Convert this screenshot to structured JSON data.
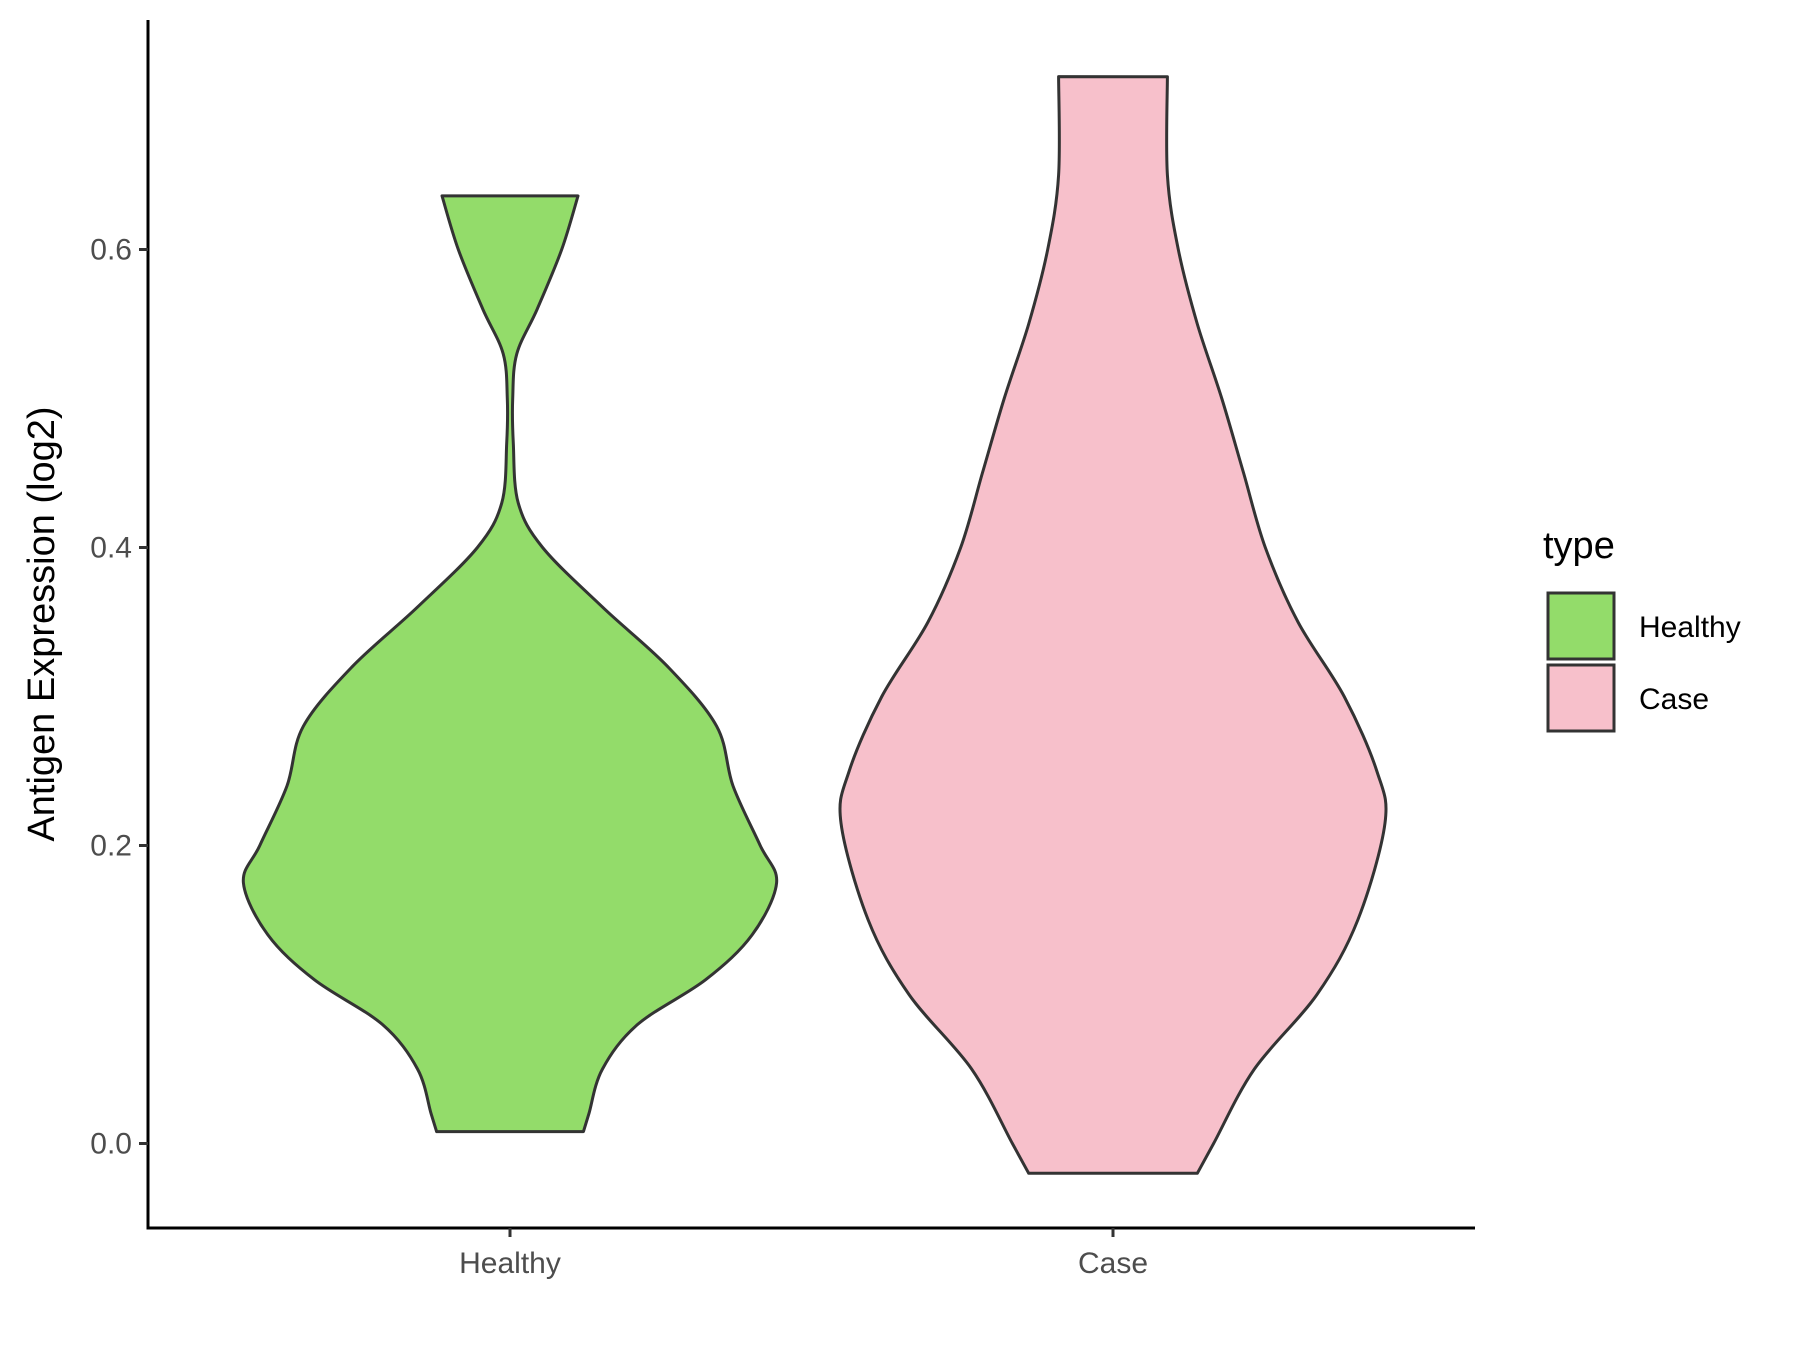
{
  "chart_data": {
    "type": "violin",
    "title": "",
    "xlabel": "",
    "ylabel": "Antigen Expression (log2)",
    "ylim": [
      -0.055,
      0.755
    ],
    "yticks": [
      0.0,
      0.2,
      0.4,
      0.6
    ],
    "ytick_labels": [
      "0.0",
      "0.2",
      "0.4",
      "0.6"
    ],
    "categories": [
      "Healthy",
      "Case"
    ],
    "grid": false,
    "legend": {
      "title": "type",
      "position": "right",
      "entries": [
        "Healthy",
        "Case"
      ]
    },
    "series": [
      {
        "name": "Healthy",
        "color": "#93DC6A",
        "min": 0.008,
        "max": 0.636,
        "density_profile": [
          [
            0.008,
            0.27
          ],
          [
            0.02,
            0.29
          ],
          [
            0.05,
            0.34
          ],
          [
            0.08,
            0.47
          ],
          [
            0.11,
            0.72
          ],
          [
            0.14,
            0.89
          ],
          [
            0.175,
            0.98
          ],
          [
            0.2,
            0.92
          ],
          [
            0.24,
            0.82
          ],
          [
            0.28,
            0.76
          ],
          [
            0.32,
            0.58
          ],
          [
            0.36,
            0.34
          ],
          [
            0.4,
            0.12
          ],
          [
            0.43,
            0.03
          ],
          [
            0.47,
            0.012
          ],
          [
            0.5,
            0.01
          ],
          [
            0.53,
            0.025
          ],
          [
            0.56,
            0.1
          ],
          [
            0.6,
            0.19
          ],
          [
            0.636,
            0.25
          ]
        ]
      },
      {
        "name": "Case",
        "color": "#F7C0CB",
        "min": -0.02,
        "max": 0.716,
        "density_profile": [
          [
            -0.02,
            0.31
          ],
          [
            0.0,
            0.37
          ],
          [
            0.05,
            0.52
          ],
          [
            0.1,
            0.75
          ],
          [
            0.15,
            0.9
          ],
          [
            0.215,
            1.0
          ],
          [
            0.25,
            0.97
          ],
          [
            0.3,
            0.85
          ],
          [
            0.35,
            0.68
          ],
          [
            0.4,
            0.56
          ],
          [
            0.45,
            0.48
          ],
          [
            0.5,
            0.4
          ],
          [
            0.55,
            0.31
          ],
          [
            0.6,
            0.24
          ],
          [
            0.65,
            0.2
          ],
          [
            0.716,
            0.2
          ]
        ]
      }
    ]
  }
}
